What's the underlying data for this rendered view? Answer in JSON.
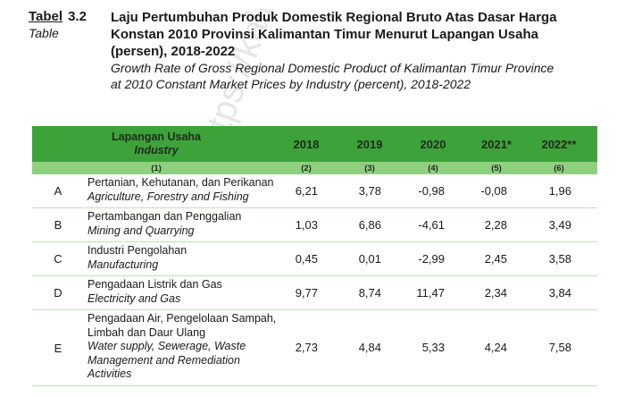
{
  "header": {
    "label_id": "Tabel",
    "number": "3.2",
    "label_en": "Table",
    "title_id_lines": [
      "Laju Pertumbuhan Produk Domestik Regional Bruto Atas Dasar Harga",
      "Konstan 2010 Provinsi Kalimantan Timur Menurut Lapangan Usaha",
      "(persen), 2018-2022"
    ],
    "title_en_lines": [
      "Growth Rate of Gross Regional Domestic Product of Kalimantan Timur Province",
      "at 2010 Constant Market Prices by Industry (percent), 2018-2022"
    ]
  },
  "table": {
    "industry_header_id": "Lapangan Usaha",
    "industry_header_en": "Industry",
    "years": [
      "2018",
      "2019",
      "2020",
      "2021*",
      "2022**"
    ],
    "column_numbers": [
      "(1)",
      "(2)",
      "(3)",
      "(4)",
      "(5)",
      "(6)"
    ],
    "rows": [
      {
        "code": "A",
        "name_id": [
          "Pertanian, Kehutanan, dan Perikanan"
        ],
        "name_en": [
          "Agriculture, Forestry and Fishing"
        ],
        "values": [
          "6,21",
          "3,78",
          "-0,98",
          "-0,08",
          "1,96"
        ]
      },
      {
        "code": "B",
        "name_id": [
          "Pertambangan dan Penggalian"
        ],
        "name_en": [
          "Mining and Quarrying"
        ],
        "values": [
          "1,03",
          "6,86",
          "-4,61",
          "2,28",
          "3,49"
        ]
      },
      {
        "code": "C",
        "name_id": [
          "Industri Pengolahan"
        ],
        "name_en": [
          "Manufacturing"
        ],
        "values": [
          "0,45",
          "0,01",
          "-2,99",
          "2,45",
          "3,58"
        ]
      },
      {
        "code": "D",
        "name_id": [
          "Pengadaan Listrik dan Gas"
        ],
        "name_en": [
          "Electricity and Gas"
        ],
        "values": [
          "9,77",
          "8,74",
          "11,47",
          "2,34",
          "3,84"
        ]
      },
      {
        "code": "E",
        "name_id": [
          "Pengadaan Air, Pengelolaan Sampah,",
          "Limbah dan Daur Ulang"
        ],
        "name_en": [
          "Water supply, Sewerage, Waste",
          "Management and Remediation",
          "Activities"
        ],
        "values": [
          "2,73",
          "4,84",
          "5,33",
          "4,24",
          "7,58"
        ]
      }
    ]
  },
  "colors": {
    "header_green": "#3ea23a",
    "subheader_green": "#8fd07f",
    "watermark": "#d8d8d8"
  }
}
